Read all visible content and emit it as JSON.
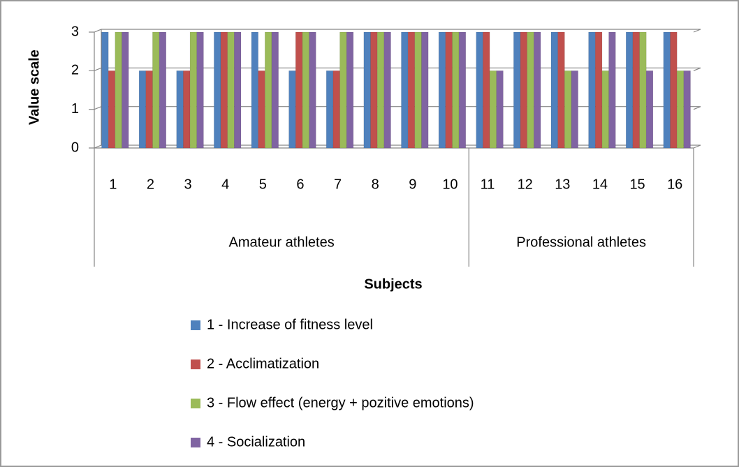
{
  "chart_data": {
    "type": "bar",
    "y_label": "Value scale",
    "x_label": "Subjects",
    "groups": [
      {
        "name": "Amateur athletes",
        "categories": [
          "1",
          "2",
          "3",
          "4",
          "5",
          "6",
          "7",
          "8",
          "9",
          "10"
        ]
      },
      {
        "name": "Professional athletes",
        "categories": [
          "11",
          "12",
          "13",
          "14",
          "15",
          "16"
        ]
      }
    ],
    "series": [
      {
        "name": "1 - Increase of fitness level",
        "color": "#4f81bd",
        "values": [
          3,
          2,
          2,
          3,
          3,
          2,
          2,
          3,
          3,
          3,
          3,
          3,
          3,
          3,
          3,
          3
        ]
      },
      {
        "name": "2 - Acclimatization",
        "color": "#c0504d",
        "values": [
          2,
          2,
          2,
          3,
          2,
          3,
          2,
          3,
          3,
          3,
          3,
          3,
          3,
          3,
          3,
          3
        ]
      },
      {
        "name": "3 - Flow effect (energy + pozitive emotions)",
        "color": "#9bbb59",
        "values": [
          3,
          3,
          3,
          3,
          3,
          3,
          3,
          3,
          3,
          3,
          2,
          3,
          2,
          2,
          3,
          2
        ]
      },
      {
        "name": "4 - Socialization",
        "color": "#8064a2",
        "values": [
          3,
          3,
          3,
          3,
          3,
          3,
          3,
          3,
          3,
          3,
          2,
          3,
          2,
          3,
          2,
          2
        ]
      }
    ],
    "ylim": [
      0,
      3
    ],
    "yticks": [
      0,
      1,
      2,
      3
    ],
    "grid": true
  }
}
